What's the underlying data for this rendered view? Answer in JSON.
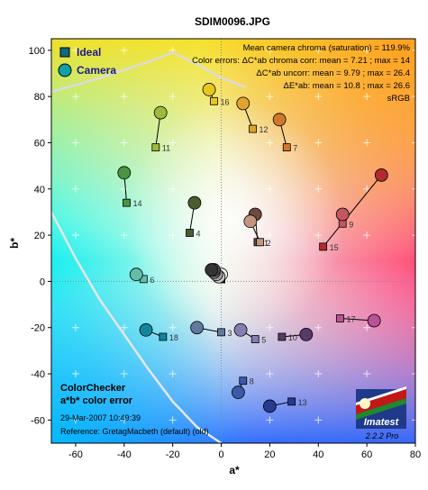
{
  "chart_data": {
    "type": "scatter",
    "title": "SDIM0096.JPG",
    "xlabel": "a*",
    "ylabel": "b*",
    "xlim": [
      -70,
      80
    ],
    "ylim": [
      -70,
      105
    ],
    "xticks": [
      -60,
      -40,
      -20,
      0,
      20,
      40,
      60,
      80
    ],
    "yticks": [
      -60,
      -40,
      -20,
      0,
      20,
      40,
      60,
      80,
      100
    ],
    "grid": false,
    "legend_position": "top-left",
    "legend": [
      "Ideal",
      "Camera"
    ],
    "info_lines": [
      "Mean camera chroma (saturation) = 119.9%",
      "Color errors: ΔC*ab chroma corr:  mean = 7.21 ;  max = 14",
      "ΔC*ab uncorr:  mean = 9.79 ;  max = 26.4",
      "ΔE*ab:  mean = 10.8 ;  max = 26.6",
      "sRGB"
    ],
    "footer_lines": [
      "ColorChecker",
      "a*b* color error",
      "29-Mar-2007 10:49:39",
      "Reference: GretagMacbeth (default) (old)"
    ],
    "version": "2.2.2  Pro",
    "logo_text": "Imatest",
    "patches": [
      {
        "id": "1",
        "ideal": [
          15,
          17
        ],
        "camera": [
          14,
          29
        ],
        "color": "#6e4a3c"
      },
      {
        "id": "2",
        "ideal": [
          16,
          17
        ],
        "camera": [
          12,
          26
        ],
        "color": "#c49582"
      },
      {
        "id": "3",
        "ideal": [
          0,
          -22
        ],
        "camera": [
          -10,
          -20
        ],
        "color": "#5f7a9c"
      },
      {
        "id": "4",
        "ideal": [
          -13,
          21
        ],
        "camera": [
          -11,
          34
        ],
        "color": "#4d5c30"
      },
      {
        "id": "5",
        "ideal": [
          14,
          -25
        ],
        "camera": [
          8,
          -21
        ],
        "color": "#8180b0"
      },
      {
        "id": "6",
        "ideal": [
          -32,
          1
        ],
        "camera": [
          -35,
          3
        ],
        "color": "#63bdaa"
      },
      {
        "id": "7",
        "ideal": [
          27,
          58
        ],
        "camera": [
          24,
          70
        ],
        "color": "#d2782a"
      },
      {
        "id": "8",
        "ideal": [
          9,
          -43
        ],
        "camera": [
          7,
          -48
        ],
        "color": "#3d5aa8"
      },
      {
        "id": "9",
        "ideal": [
          50,
          25
        ],
        "camera": [
          50,
          29
        ],
        "color": "#c25662"
      },
      {
        "id": "10",
        "ideal": [
          25,
          -24
        ],
        "camera": [
          35,
          -23
        ],
        "color": "#573a67"
      },
      {
        "id": "11",
        "ideal": [
          -27,
          58
        ],
        "camera": [
          -25,
          73
        ],
        "color": "#9cbb3a"
      },
      {
        "id": "12",
        "ideal": [
          13,
          66
        ],
        "camera": [
          9,
          77
        ],
        "color": "#e1a22e"
      },
      {
        "id": "13",
        "ideal": [
          29,
          -52
        ],
        "camera": [
          20,
          -54
        ],
        "color": "#283a90"
      },
      {
        "id": "14",
        "ideal": [
          -39,
          34
        ],
        "camera": [
          -40,
          47
        ],
        "color": "#4b9440"
      },
      {
        "id": "15",
        "ideal": [
          42,
          15
        ],
        "camera": [
          66,
          46
        ],
        "color": "#b32a30"
      },
      {
        "id": "16",
        "ideal": [
          -3,
          78
        ],
        "camera": [
          -5,
          83
        ],
        "color": "#e8c81e"
      },
      {
        "id": "17",
        "ideal": [
          49,
          -16
        ],
        "camera": [
          63,
          -17
        ],
        "color": "#bc5094"
      },
      {
        "id": "18",
        "ideal": [
          -24,
          -24
        ],
        "camera": [
          -31,
          -21
        ],
        "color": "#10869e"
      },
      {
        "id": "19",
        "ideal": [
          0,
          1
        ],
        "camera": [
          0,
          3
        ],
        "color": "#f2f2f2"
      },
      {
        "id": "20",
        "ideal": [
          0,
          1
        ],
        "camera": [
          -1,
          2
        ],
        "color": "#c8c8c8"
      },
      {
        "id": "21",
        "ideal": [
          0,
          1
        ],
        "camera": [
          -2,
          3
        ],
        "color": "#a0a0a0"
      },
      {
        "id": "22",
        "ideal": [
          0,
          1
        ],
        "camera": [
          -3,
          4
        ],
        "color": "#7a7a7a"
      },
      {
        "id": "23",
        "ideal": [
          0,
          1
        ],
        "camera": [
          -3,
          5
        ],
        "color": "#555555"
      },
      {
        "id": "24",
        "ideal": [
          0,
          1
        ],
        "camera": [
          -4,
          5
        ],
        "color": "#343434"
      }
    ],
    "gamut_boundary": [
      [
        -70,
        30
      ],
      [
        -60,
        10
      ],
      [
        -50,
        -8
      ],
      [
        -40,
        -23
      ],
      [
        -30,
        -38
      ],
      [
        -20,
        -52
      ],
      [
        -10,
        -63
      ],
      [
        0,
        -70
      ]
    ],
    "gamut_top": [
      [
        -70,
        82
      ],
      [
        -50,
        88
      ],
      [
        -30,
        95
      ],
      [
        -20,
        99
      ],
      [
        -10,
        94
      ],
      [
        0,
        88
      ],
      [
        10,
        84
      ]
    ]
  }
}
